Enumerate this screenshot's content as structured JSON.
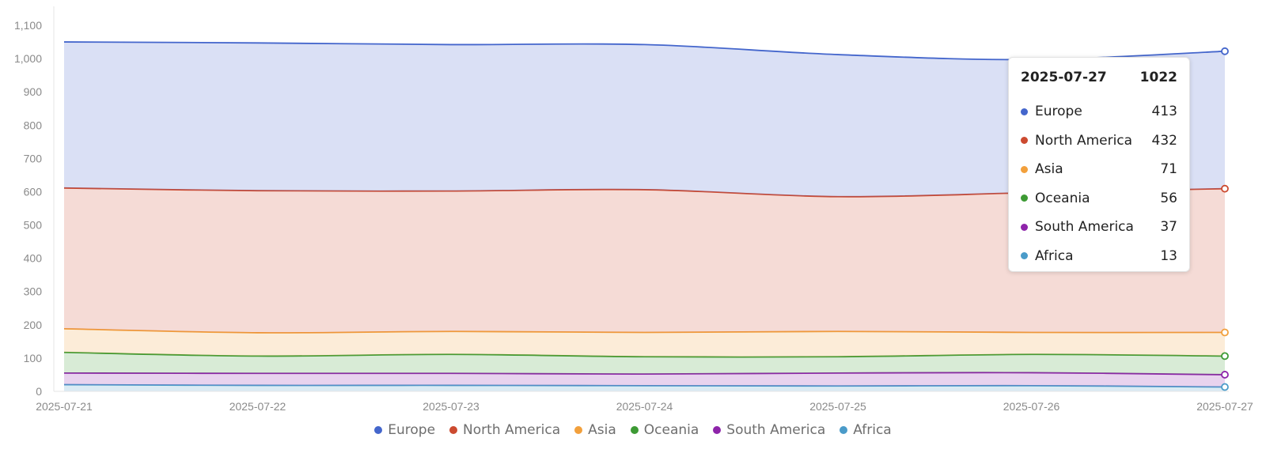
{
  "chart_data": {
    "type": "area",
    "stacked": true,
    "x": [
      "2025-07-21",
      "2025-07-22",
      "2025-07-23",
      "2025-07-24",
      "2025-07-25",
      "2025-07-26",
      "2025-07-27"
    ],
    "ylim": [
      0,
      1100
    ],
    "yticks": [
      0,
      100,
      200,
      300,
      400,
      500,
      600,
      700,
      800,
      900,
      1000,
      1100
    ],
    "ytick_labels": [
      "0",
      "100",
      "200",
      "300",
      "400",
      "500",
      "600",
      "700",
      "800",
      "900",
      "1,000",
      "1,100"
    ],
    "grid": false,
    "legend_position": "bottom-center",
    "series": [
      {
        "name": "Africa",
        "color": "#4a9bc9",
        "values": [
          20,
          18,
          18,
          17,
          16,
          17,
          13
        ]
      },
      {
        "name": "South America",
        "color": "#8e24aa",
        "values": [
          35,
          36,
          36,
          35,
          39,
          39,
          37
        ]
      },
      {
        "name": "Oceania",
        "color": "#3d9a34",
        "values": [
          62,
          52,
          57,
          52,
          49,
          55,
          56
        ]
      },
      {
        "name": "Asia",
        "color": "#f2a03c",
        "values": [
          71,
          70,
          69,
          73,
          76,
          66,
          71
        ]
      },
      {
        "name": "North America",
        "color": "#cc4a30",
        "values": [
          423,
          427,
          422,
          429,
          405,
          420,
          432
        ]
      },
      {
        "name": "Europe",
        "color": "#4466cc",
        "values": [
          439,
          444,
          440,
          436,
          427,
          400,
          413
        ]
      }
    ],
    "legend_order": [
      "Europe",
      "North America",
      "Asia",
      "Oceania",
      "South America",
      "Africa"
    ],
    "tooltip": {
      "date": "2025-07-27",
      "total": "1022",
      "rows": [
        {
          "name": "Europe",
          "value": "413",
          "color": "#4466cc"
        },
        {
          "name": "North America",
          "value": "432",
          "color": "#cc4a30"
        },
        {
          "name": "Asia",
          "value": "71",
          "color": "#f2a03c"
        },
        {
          "name": "Oceania",
          "value": "56",
          "color": "#3d9a34"
        },
        {
          "name": "South America",
          "value": "37",
          "color": "#8e24aa"
        },
        {
          "name": "Africa",
          "value": "13",
          "color": "#4a9bc9"
        }
      ]
    }
  }
}
